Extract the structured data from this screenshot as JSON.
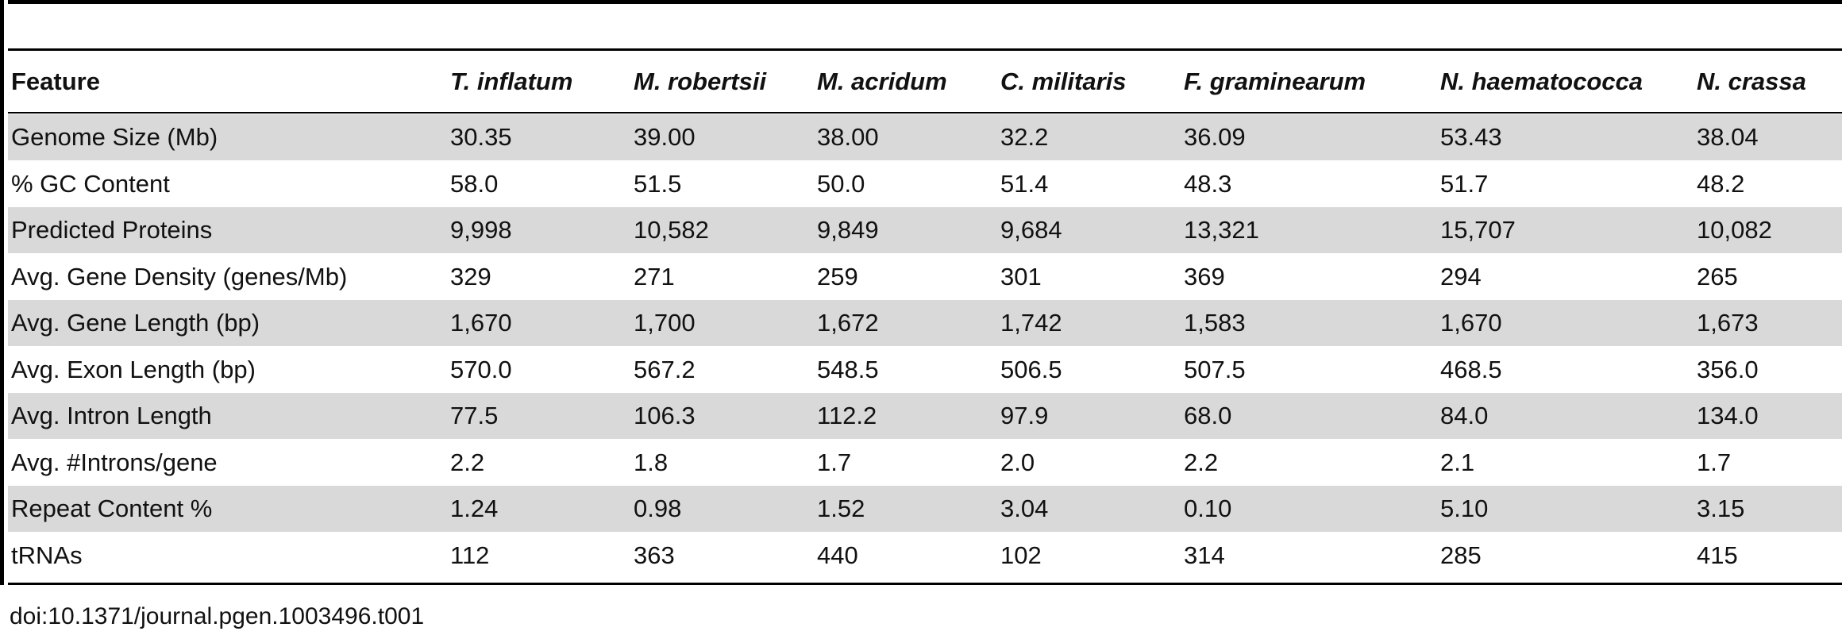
{
  "table": {
    "headers": [
      "Feature",
      "T. inflatum",
      "M. robertsii",
      "M. acridum",
      "C. militaris",
      "F. graminearum",
      "N. haematococca",
      "N. crassa"
    ],
    "rows": [
      [
        "Genome Size (Mb)",
        "30.35",
        "39.00",
        "38.00",
        "32.2",
        "36.09",
        "53.43",
        "38.04"
      ],
      [
        "% GC Content",
        "58.0",
        "51.5",
        "50.0",
        "51.4",
        "48.3",
        "51.7",
        "48.2"
      ],
      [
        "Predicted Proteins",
        "9,998",
        "10,582",
        "9,849",
        "9,684",
        "13,321",
        "15,707",
        "10,082"
      ],
      [
        "Avg. Gene Density (genes/Mb)",
        "329",
        "271",
        "259",
        "301",
        "369",
        "294",
        "265"
      ],
      [
        "Avg. Gene Length (bp)",
        "1,670",
        "1,700",
        "1,672",
        "1,742",
        "1,583",
        "1,670",
        "1,673"
      ],
      [
        "Avg. Exon Length (bp)",
        "570.0",
        "567.2",
        "548.5",
        "506.5",
        "507.5",
        "468.5",
        "356.0"
      ],
      [
        "Avg. Intron Length",
        "77.5",
        "106.3",
        "112.2",
        "97.9",
        "68.0",
        "84.0",
        "134.0"
      ],
      [
        "Avg. #Introns/gene",
        "2.2",
        "1.8",
        "1.7",
        "2.0",
        "2.2",
        "2.1",
        "1.7"
      ],
      [
        "Repeat Content %",
        "1.24",
        "0.98",
        "1.52",
        "3.04",
        "0.10",
        "5.10",
        "3.15"
      ],
      [
        "tRNAs",
        "112",
        "363",
        "440",
        "102",
        "314",
        "285",
        "415"
      ]
    ]
  },
  "footer": {
    "doi": "doi:10.1371/journal.pgen.1003496.t001"
  }
}
